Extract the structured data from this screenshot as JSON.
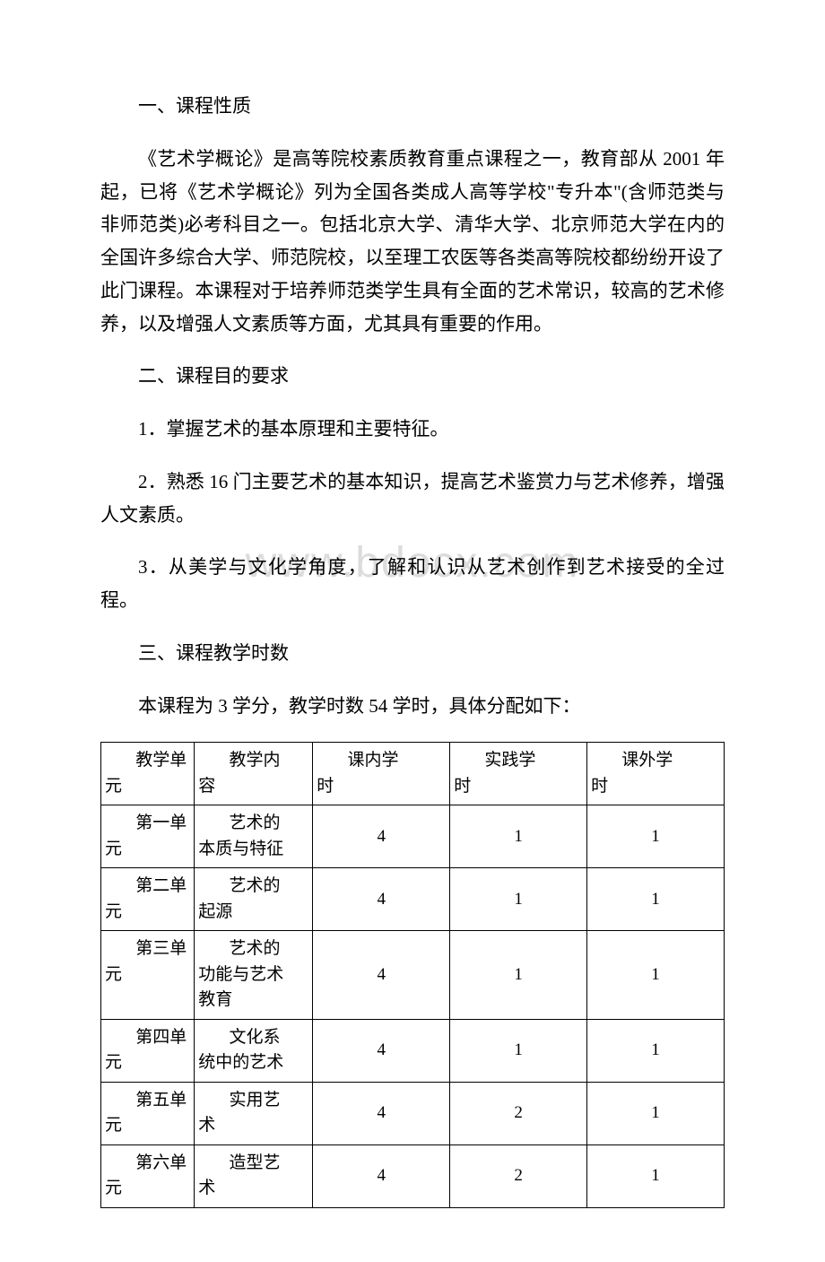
{
  "watermark": "www.bdocx.com",
  "sections": {
    "s1_title": "一、课程性质",
    "s1_body": "《艺术学概论》是高等院校素质教育重点课程之一，教育部从 2001 年起，已将《艺术学概论》列为全国各类成人高等学校\"专升本\"(含师范类与非师范类)必考科目之一。包括北京大学、清华大学、北京师范大学在内的全国许多综合大学、师范院校，以至理工农医等各类高等院校都纷纷开设了此门课程。本课程对于培养师范类学生具有全面的艺术常识，较高的艺术修养，以及增强人文素质等方面，尤其具有重要的作用。",
    "s2_title": "二、课程目的要求",
    "s2_item1": "1．掌握艺术的基本原理和主要特征。",
    "s2_item2": "2．熟悉 16 门主要艺术的基本知识，提高艺术鉴赏力与艺术修养，增强人文素质。",
    "s2_item3": "3．从美学与文化学角度，了解和认识从艺术创作到艺术接受的全过程。",
    "s3_title": "三、课程教学时数",
    "s3_intro": "本课程为 3 学分，教学时数 54 学时，具体分配如下："
  },
  "table": {
    "headers": {
      "unit_l1": "教学单",
      "unit_l2": "元",
      "content_l1": "教学内",
      "content_l2": "容",
      "in_class_l1": "课内学",
      "in_class_l2": "时",
      "practice_l1": "实践学",
      "practice_l2": "时",
      "out_class_l1": "课外学",
      "out_class_l2": "时"
    },
    "rows": [
      {
        "unit_l1": "第一单",
        "unit_l2": "元",
        "content_l1": "艺术的",
        "content_l2": "本质与特征",
        "in_class": "4",
        "practice": "1",
        "out_class": "1"
      },
      {
        "unit_l1": "第二单",
        "unit_l2": "元",
        "content_l1": "艺术的",
        "content_l2": "起源",
        "in_class": "4",
        "practice": "1",
        "out_class": "1"
      },
      {
        "unit_l1": "第三单",
        "unit_l2": "元",
        "content_l1": "艺术的",
        "content_l2": "功能与艺术",
        "content_l3": "教育",
        "in_class": "4",
        "practice": "1",
        "out_class": "1"
      },
      {
        "unit_l1": "第四单",
        "unit_l2": "元",
        "content_l1": "文化系",
        "content_l2": "统中的艺术",
        "in_class": "4",
        "practice": "1",
        "out_class": "1"
      },
      {
        "unit_l1": "第五单",
        "unit_l2": "元",
        "content_l1": "实用艺",
        "content_l2": "术",
        "in_class": "4",
        "practice": "2",
        "out_class": "1"
      },
      {
        "unit_l1": "第六单",
        "unit_l2": "元",
        "content_l1": "造型艺",
        "content_l2": "术",
        "in_class": "4",
        "practice": "2",
        "out_class": "1"
      }
    ]
  },
  "colors": {
    "text": "#000000",
    "background": "#ffffff",
    "watermark": "#dcdcdc",
    "border": "#000000"
  }
}
